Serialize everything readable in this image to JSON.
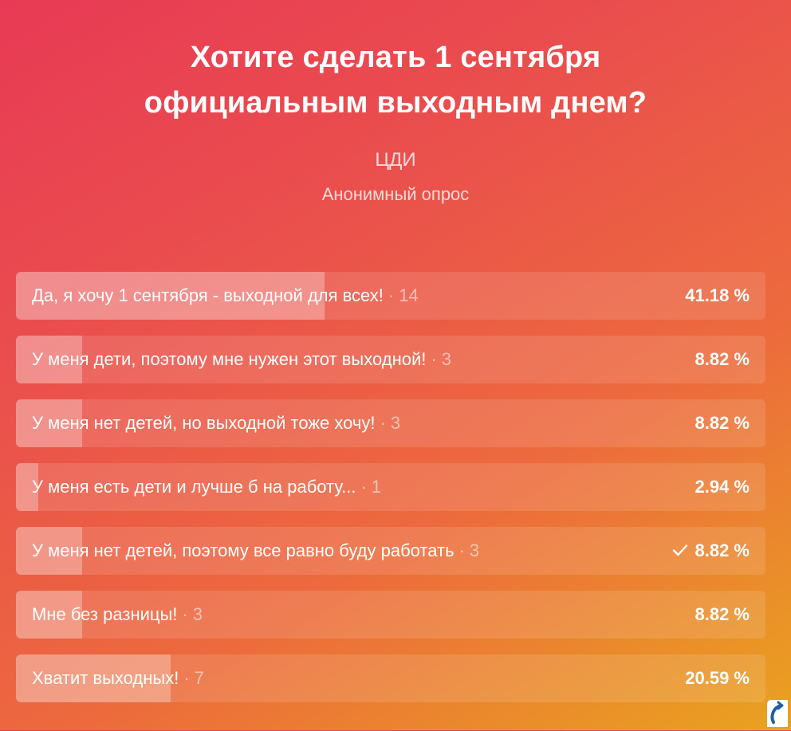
{
  "poll": {
    "title": "Хотите сделать 1 сентября официальным выходным днем?",
    "author": "ЦДИ",
    "type": "Анонимный опрос",
    "separator": "·",
    "options": [
      {
        "text": "Да, я хочу 1 сентября - выходной для всех!",
        "votes": "14",
        "percent": "41.18 %",
        "share": 41.18,
        "voted": false
      },
      {
        "text": "У меня дети, поэтому мне нужен этот выходной!",
        "votes": "3",
        "percent": "8.82 %",
        "share": 8.82,
        "voted": false
      },
      {
        "text": "У меня нет детей, но выходной тоже хочу!",
        "votes": "3",
        "percent": "8.82 %",
        "share": 8.82,
        "voted": false
      },
      {
        "text": "У меня есть дети и лучше б на работу...",
        "votes": "1",
        "percent": "2.94 %",
        "share": 2.94,
        "voted": false
      },
      {
        "text": "У меня нет детей, поэтому все равно буду работать",
        "votes": "3",
        "percent": "8.82 %",
        "share": 8.82,
        "voted": true
      },
      {
        "text": "Мне без разницы!",
        "votes": "3",
        "percent": "8.82 %",
        "share": 8.82,
        "voted": false
      },
      {
        "text": "Хватит выходных!",
        "votes": "7",
        "percent": "20.59 %",
        "share": 20.59,
        "voted": false
      }
    ]
  },
  "icons": {
    "voted": "checkmark-icon",
    "corner": "app-logo-icon"
  },
  "colors": {
    "gradient_start": "#e83a55",
    "gradient_mid": "#ec6a3d",
    "gradient_end": "#e9a31f"
  }
}
